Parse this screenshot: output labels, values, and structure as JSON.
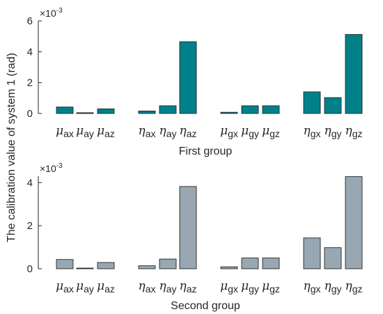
{
  "shared_ylabel": "The calibration value of system 1 (rad)",
  "chart_data": [
    {
      "type": "bar",
      "xlabel": "First group",
      "multiplier": {
        "base": "×10",
        "exp": "-3"
      },
      "ylim": [
        0,
        6
      ],
      "yticks": [
        "0",
        "2",
        "4",
        "6"
      ],
      "ytick_values": [
        0,
        2,
        4,
        6
      ],
      "color": "#00818a",
      "categories": [
        {
          "sym": "μ",
          "sub": "ax"
        },
        {
          "sym": "μ",
          "sub": "ay"
        },
        {
          "sym": "μ",
          "sub": "az"
        },
        {
          "sym": "η",
          "sub": "ax"
        },
        {
          "sym": "η",
          "sub": "ay"
        },
        {
          "sym": "η",
          "sub": "az"
        },
        {
          "sym": "μ",
          "sub": "gx"
        },
        {
          "sym": "μ",
          "sub": "gy"
        },
        {
          "sym": "μ",
          "sub": "gz"
        },
        {
          "sym": "η",
          "sub": "gx"
        },
        {
          "sym": "η",
          "sub": "gy"
        },
        {
          "sym": "η",
          "sub": "gz"
        }
      ],
      "values": [
        0.42,
        0.05,
        0.3,
        0.16,
        0.5,
        4.65,
        0.08,
        0.5,
        0.5,
        1.4,
        1.03,
        5.12
      ]
    },
    {
      "type": "bar",
      "xlabel": "Second group",
      "multiplier": {
        "base": "×10",
        "exp": "-3"
      },
      "ylim": [
        0,
        4.3
      ],
      "yticks": [
        "0",
        "2",
        "4"
      ],
      "ytick_values": [
        0,
        2,
        4
      ],
      "color": "#98a7b1",
      "categories": [
        {
          "sym": "μ",
          "sub": "ax"
        },
        {
          "sym": "μ",
          "sub": "ay"
        },
        {
          "sym": "μ",
          "sub": "az"
        },
        {
          "sym": "η",
          "sub": "ax"
        },
        {
          "sym": "η",
          "sub": "ay"
        },
        {
          "sym": "η",
          "sub": "az"
        },
        {
          "sym": "μ",
          "sub": "gx"
        },
        {
          "sym": "μ",
          "sub": "gy"
        },
        {
          "sym": "μ",
          "sub": "gz"
        },
        {
          "sym": "η",
          "sub": "gx"
        },
        {
          "sym": "η",
          "sub": "gy"
        },
        {
          "sym": "η",
          "sub": "gz"
        }
      ],
      "values": [
        0.43,
        0.03,
        0.29,
        0.14,
        0.45,
        3.82,
        0.09,
        0.5,
        0.5,
        1.43,
        0.98,
        4.28
      ]
    }
  ]
}
